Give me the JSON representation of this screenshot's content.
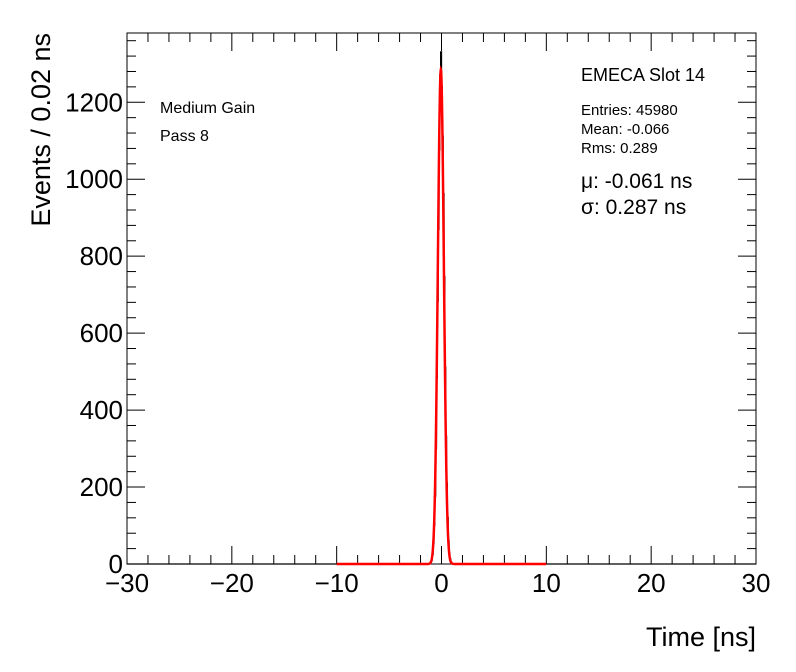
{
  "chart_data": {
    "type": "histogram",
    "xlabel": "Time [ns]",
    "ylabel": "Events / 0.02 ns",
    "xlim": [
      -30,
      30
    ],
    "ylim": [
      0,
      1380
    ],
    "x_ticks": [
      -30,
      -20,
      -10,
      0,
      10,
      20,
      30
    ],
    "x_tick_labels": [
      "−30",
      "−20",
      "−10",
      "0",
      "10",
      "20",
      "30"
    ],
    "y_ticks": [
      0,
      200,
      400,
      600,
      800,
      1000,
      1200
    ],
    "y_tick_labels": [
      "0",
      "200",
      "400",
      "600",
      "800",
      "1000",
      "1200"
    ],
    "grid": false,
    "histogram": {
      "color": "#000000",
      "bin_width": 0.02,
      "peak_x": -0.03,
      "peak_y": 1305,
      "sigma": 0.287
    },
    "fit": {
      "color": "#ff0000",
      "range": [
        -10,
        10
      ],
      "mu": -0.061,
      "sigma": 0.287,
      "amplitude": 1285
    },
    "annotations": {
      "gain": "Medium Gain",
      "pass": "Pass 8",
      "slot": "EMECA Slot 14",
      "entries": "Entries: 45980",
      "mean": "Mean: -0.066",
      "rms": "Rms: 0.289",
      "mu_text": "μ: -0.061 ns",
      "sigma_text": "σ: 0.287 ns"
    }
  }
}
